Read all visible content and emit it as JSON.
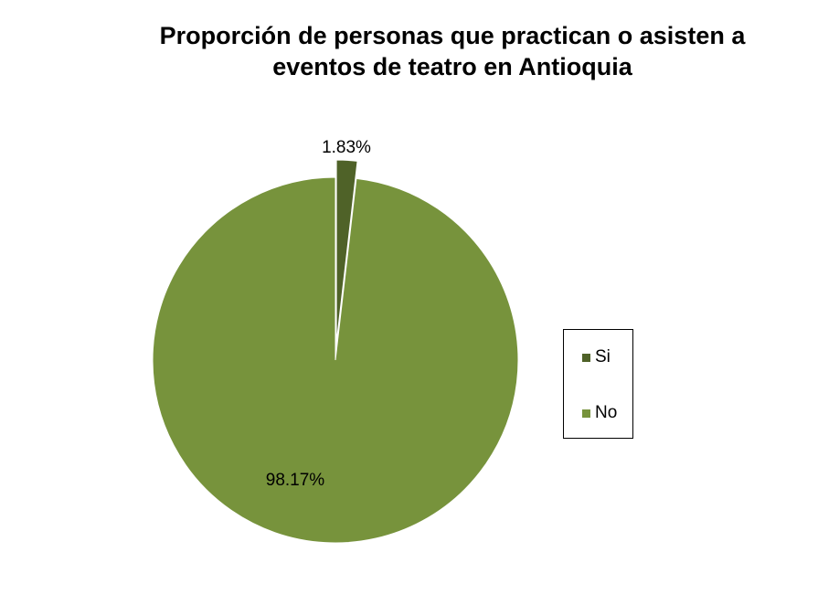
{
  "chart_data": {
    "type": "pie",
    "title_lines": [
      "Proporción de personas que practican o asisten a",
      "eventos de teatro en Antioquia"
    ],
    "categories": [
      "Si",
      "No"
    ],
    "values": [
      1.83,
      98.17
    ],
    "data_labels": [
      "1.83%",
      "98.17%"
    ],
    "colors": [
      "#4f6228",
      "#77933c"
    ],
    "legend_position": "right",
    "exploded_slice": "Si"
  }
}
